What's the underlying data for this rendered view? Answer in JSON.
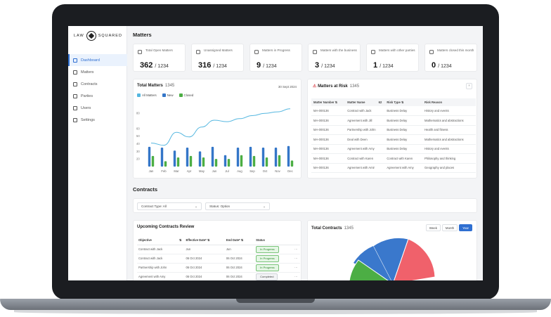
{
  "brand": {
    "left": "LAW",
    "right": "SQUARED"
  },
  "sidebar": {
    "items": [
      {
        "label": "Dashboard",
        "active": true
      },
      {
        "label": "Matters"
      },
      {
        "label": "Contracts"
      },
      {
        "label": "Parties"
      },
      {
        "label": "Users"
      },
      {
        "label": "Settings"
      }
    ]
  },
  "matters": {
    "title": "Matters",
    "stats": [
      {
        "label": "Total Open Matters",
        "value": "362",
        "total": "/ 1234",
        "icon": "briefcase-icon"
      },
      {
        "label": "Unassigned Matters",
        "value": "316",
        "total": "/ 1234",
        "icon": "user-off-icon"
      },
      {
        "label": "Matters in Progress",
        "value": "9",
        "total": "/ 1234",
        "icon": "progress-icon"
      },
      {
        "label": "Matters with the business",
        "value": "3",
        "total": "/ 1234",
        "icon": "building-icon"
      },
      {
        "label": "Matters with other parties",
        "value": "1",
        "total": "/ 1234",
        "icon": "users-icon"
      },
      {
        "label": "Matters closed this month",
        "value": "0",
        "total": "/ 1234",
        "icon": "check-icon"
      }
    ]
  },
  "total_matters": {
    "title": "Total Matters",
    "count": "1345",
    "date": "30 Sept 2024",
    "legend": [
      "All Matters",
      "New",
      "Closed"
    ],
    "colors": {
      "all": "#55b7e0",
      "new": "#3476c8",
      "closed": "#4cae44"
    }
  },
  "chart_data": {
    "type": "bar",
    "categories": [
      "Jan",
      "Feb",
      "Mar",
      "Apr",
      "May",
      "Jun",
      "Jul",
      "Aug",
      "Sep",
      "Oct",
      "Nov",
      "Dec"
    ],
    "ylim": [
      10,
      95
    ],
    "yticks": [
      20,
      30,
      40,
      50,
      60,
      80
    ],
    "series": [
      {
        "name": "New",
        "kind": "bar",
        "values": [
          36,
          35,
          31,
          35,
          30,
          36,
          25,
          35,
          36,
          35,
          35,
          37
        ]
      },
      {
        "name": "Closed",
        "kind": "bar",
        "values": [
          24,
          17,
          22,
          24,
          22,
          20,
          20,
          25,
          24,
          22,
          25,
          18
        ]
      },
      {
        "name": "All Matters",
        "kind": "line",
        "values": [
          41,
          38,
          55,
          49,
          62,
          71,
          69,
          73,
          77,
          80,
          82,
          86
        ]
      }
    ]
  },
  "risk": {
    "title": "Matters at Risk",
    "count": "1345",
    "columns": [
      "Matter Number",
      "Matter Name",
      "Risk Type",
      "Risk Reason"
    ],
    "sort_number": "62",
    "rows": [
      [
        "MA-000136",
        "Contract with Jack",
        "Business Delay",
        "History and events"
      ],
      [
        "MA-000136",
        "Agreement with Jill",
        "Business Delay",
        "Mathematics and abstractions"
      ],
      [
        "MA-000136",
        "Partnership with John",
        "Business Delay",
        "Health and fitness"
      ],
      [
        "MA-000136",
        "Deal with Deen",
        "Business Delay",
        "Mathematics and abstractions"
      ],
      [
        "MA-000136",
        "Agreement with Amy",
        "Business Delay",
        "History and events"
      ],
      [
        "MA-000136",
        "Contract with Karen",
        "Contract with Karen",
        "Philosophy and thinking"
      ],
      [
        "MA-000136",
        "Agreement with Amir",
        "Agreement with Amy",
        "Geography and places"
      ]
    ]
  },
  "contracts": {
    "title": "Contracts",
    "filters": {
      "type": "Contract Type: All",
      "status": "Status: Option"
    }
  },
  "upcoming": {
    "title": "Upcoming Contracts Review",
    "columns": [
      "Objective",
      "Effective Date*",
      "End Date*",
      "Status"
    ],
    "rows": [
      {
        "objective": "Contract with Jack",
        "effective": "Jun",
        "end": "Jun",
        "status": "In Progress",
        "kind": "progress"
      },
      {
        "objective": "Contract with Jack",
        "effective": "06 Oct 2024",
        "end": "06 Oct 2024",
        "status": "In Progress",
        "kind": "progress"
      },
      {
        "objective": "Partnership with John",
        "effective": "06 Oct 2024",
        "end": "06 Oct 2024",
        "status": "In Progress",
        "kind": "progress"
      },
      {
        "objective": "Agreement with Amy",
        "effective": "06 Oct 2024",
        "end": "06 Oct 2024",
        "status": "Completed",
        "kind": "done"
      }
    ],
    "more": "···"
  },
  "total_contracts": {
    "title": "Total Contracts",
    "count": "1345",
    "periods": [
      "Week",
      "Month",
      "Year"
    ],
    "active_period": "Year",
    "slice_colors": [
      "#3a78cc",
      "#f0616b",
      "#4cae44"
    ]
  }
}
